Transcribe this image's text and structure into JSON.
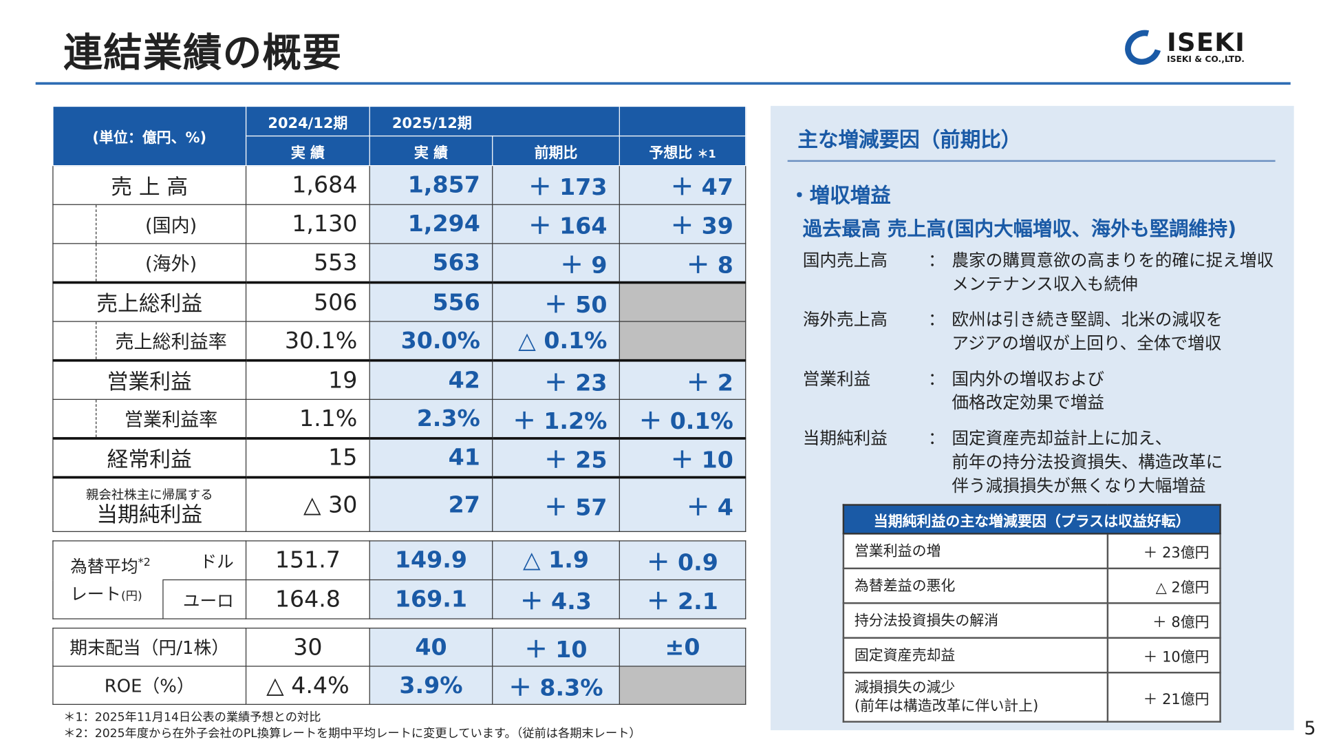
{
  "title": "連結業績の概要",
  "logo": {
    "name": "ISEKI",
    "sub": "ISEKI & CO.,LTD."
  },
  "page_number": "5",
  "colors": {
    "header": "#1a5aa6",
    "value_bg": "#dde9f6",
    "gray": "#bfbfbf",
    "panel_bg": "#dde8f4"
  },
  "table": {
    "unit": "(単位：億円、%)",
    "fy2024": "2024/12期",
    "fy2025": "2025/12期",
    "col_actual": "実 績",
    "col_yoy": "前期比",
    "col_plan": "予想比",
    "col_plan_note": "＊1",
    "rows": [
      {
        "label": "売 上 高",
        "prev": "1,684",
        "cur": "1,857",
        "yoy": "＋ 173",
        "plan": "＋ 47"
      },
      {
        "label": "(国内)",
        "prev": "1,130",
        "cur": "1,294",
        "yoy": "＋ 164",
        "plan": "＋ 39"
      },
      {
        "label": "(海外)",
        "prev": "553",
        "cur": "563",
        "yoy": "＋ 9",
        "plan": "＋ 8"
      },
      {
        "label": "売上総利益",
        "prev": "506",
        "cur": "556",
        "yoy": "＋ 50",
        "plan": ""
      },
      {
        "label": "売上総利益率",
        "prev": "30.1%",
        "cur": "30.0%",
        "yoy": "△ 0.1%",
        "plan": ""
      },
      {
        "label": "営業利益",
        "prev": "19",
        "cur": "42",
        "yoy": "＋ 23",
        "plan": "＋ 2"
      },
      {
        "label": "営業利益率",
        "prev": "1.1%",
        "cur": "2.3%",
        "yoy": "＋ 1.2%",
        "plan": "＋ 0.1%"
      },
      {
        "label": "経常利益",
        "prev": "15",
        "cur": "41",
        "yoy": "＋ 25",
        "plan": "＋ 10"
      },
      {
        "label_small": "親会社株主に帰属する",
        "label": "当期純利益",
        "prev": "△ 30",
        "cur": "27",
        "yoy": "＋ 57",
        "plan": "＋ 4"
      }
    ],
    "fx": {
      "label": "為替平均",
      "note": "*2",
      "label2": "レート",
      "unit": "(円)",
      "rows": [
        {
          "label": "ドル",
          "prev": "151.7",
          "cur": "149.9",
          "yoy": "△ 1.9",
          "plan": "＋ 0.9"
        },
        {
          "label": "ユーロ",
          "prev": "164.8",
          "cur": "169.1",
          "yoy": "＋ 4.3",
          "plan": "＋ 2.1"
        }
      ]
    },
    "div": [
      {
        "label": "期末配当（円/1株）",
        "prev": "30",
        "cur": "40",
        "yoy": "＋ 10",
        "plan": "±0"
      },
      {
        "label": "ROE（%）",
        "prev": "△ 4.4%",
        "cur": "3.9%",
        "yoy": "＋ 8.3%",
        "plan": ""
      }
    ]
  },
  "notes": [
    "＊1：2025年11月14日公表の業績予想との対比",
    "＊2：2025年度から在外子会社のPL換算レートを期中平均レートに変更しています。（従前は各期末レート）"
  ],
  "panel": {
    "title": "主な増減要因（前期比）",
    "h1": "・増収増益",
    "h2": "過去最高 売上高(国内大幅増収、海外も堅調維持)",
    "items": [
      {
        "k": "国内売上高",
        "d": [
          "農家の購買意欲の高まりを的確に捉え増収",
          "メンテナンス収入も続伸"
        ]
      },
      {
        "k": "海外売上高",
        "d": [
          "欧州は引き続き堅調、北米の減収を",
          "アジアの増収が上回り、全体で増収"
        ]
      },
      {
        "k": "営業利益",
        "d": [
          "国内外の増収および",
          "価格改定効果で増益"
        ]
      },
      {
        "k": "当期純利益",
        "d": [
          "固定資産売却益計上に加え、",
          "前年の持分法投資損失、構造改革に",
          "伴う減損損失が無くなり大幅増益"
        ]
      }
    ],
    "sep": "：",
    "sub_title": "当期純利益の主な増減要因（プラスは収益好転）",
    "sub_rows": [
      {
        "label": "営業利益の増",
        "value": "＋ 23億円"
      },
      {
        "label": "為替差益の悪化",
        "value": "△ 2億円"
      },
      {
        "label": "持分法投資損失の解消",
        "value": "＋ 8億円"
      },
      {
        "label": "固定資産売却益",
        "value": "＋ 10億円"
      },
      {
        "label": "減損損失の減少",
        "label2": "(前年は構造改革に伴い計上)",
        "value": "＋ 21億円"
      }
    ]
  }
}
